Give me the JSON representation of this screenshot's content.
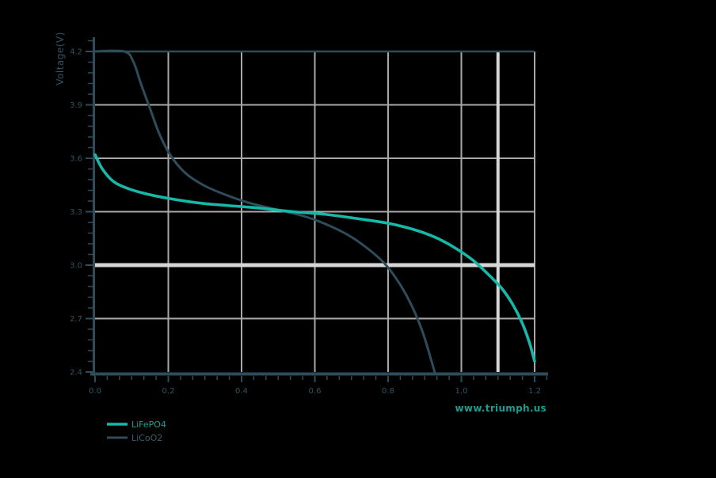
{
  "chart": {
    "y_axis": {
      "label": "Voltage(V)",
      "tick_labels": [
        "4.2",
        "3.9",
        "3.6",
        "3.3",
        "3.0",
        "2.7",
        "2.4"
      ]
    },
    "x_axis": {
      "label": "",
      "tick_labels": [
        "0.0",
        "0.2",
        "0.4",
        "0.6",
        "0.8",
        "1.0",
        "1.2"
      ]
    },
    "legend": [
      {
        "name": "LiFePO4",
        "line_color": "#16b9a9",
        "label_color": "#1d9f93"
      },
      {
        "name": "LiCoO2",
        "line_color": "#2e4d5a",
        "label_color": "#3c5f6d"
      }
    ],
    "watermark": "www.triumph.us",
    "colors": {
      "background": "#000000",
      "grid": "#a8a8a8",
      "crosshair": "#d6d6d6",
      "axis": "#2e4d5a",
      "tick_text": "#35525e",
      "watermark_text": "#1e9b91"
    }
  },
  "chart_data": {
    "type": "line",
    "title": "",
    "xlabel": "",
    "ylabel": "Voltage(V)",
    "xlim": [
      0,
      1.2
    ],
    "ylim": [
      2.4,
      4.2
    ],
    "x_ticks": [
      0.0,
      0.2,
      0.4,
      0.6,
      0.8,
      1.0,
      1.2
    ],
    "y_ticks": [
      4.2,
      3.9,
      3.6,
      3.3,
      3.0,
      2.7,
      2.4
    ],
    "x_minor_per_major": 6,
    "y_minor_per_major": 5,
    "grid": true,
    "legend_position": "bottom-left",
    "crosshair": {
      "x": 1.1,
      "y": 3.0
    },
    "series": [
      {
        "name": "LiCoO2",
        "color": "#2e4d5a",
        "width": 3,
        "points": [
          [
            0.0,
            4.2
          ],
          [
            0.08,
            4.2
          ],
          [
            0.105,
            4.14
          ],
          [
            0.125,
            4.02
          ],
          [
            0.15,
            3.88
          ],
          [
            0.175,
            3.74
          ],
          [
            0.205,
            3.62
          ],
          [
            0.245,
            3.52
          ],
          [
            0.295,
            3.45
          ],
          [
            0.35,
            3.4
          ],
          [
            0.42,
            3.35
          ],
          [
            0.5,
            3.31
          ],
          [
            0.57,
            3.275
          ],
          [
            0.63,
            3.23
          ],
          [
            0.69,
            3.17
          ],
          [
            0.74,
            3.1
          ],
          [
            0.79,
            3.01
          ],
          [
            0.83,
            2.9
          ],
          [
            0.865,
            2.77
          ],
          [
            0.895,
            2.62
          ],
          [
            0.92,
            2.45
          ],
          [
            0.927,
            2.4
          ]
        ]
      },
      {
        "name": "LiFePO4",
        "color": "#16b9a9",
        "width": 3.6,
        "points": [
          [
            0.0,
            3.62
          ],
          [
            0.02,
            3.54
          ],
          [
            0.05,
            3.47
          ],
          [
            0.09,
            3.43
          ],
          [
            0.14,
            3.4
          ],
          [
            0.2,
            3.375
          ],
          [
            0.28,
            3.35
          ],
          [
            0.36,
            3.335
          ],
          [
            0.45,
            3.32
          ],
          [
            0.54,
            3.3
          ],
          [
            0.63,
            3.285
          ],
          [
            0.72,
            3.26
          ],
          [
            0.8,
            3.235
          ],
          [
            0.87,
            3.2
          ],
          [
            0.93,
            3.155
          ],
          [
            0.98,
            3.1
          ],
          [
            1.03,
            3.03
          ],
          [
            1.07,
            2.955
          ],
          [
            1.11,
            2.87
          ],
          [
            1.14,
            2.78
          ],
          [
            1.165,
            2.68
          ],
          [
            1.185,
            2.57
          ],
          [
            1.2,
            2.46
          ]
        ]
      }
    ]
  }
}
